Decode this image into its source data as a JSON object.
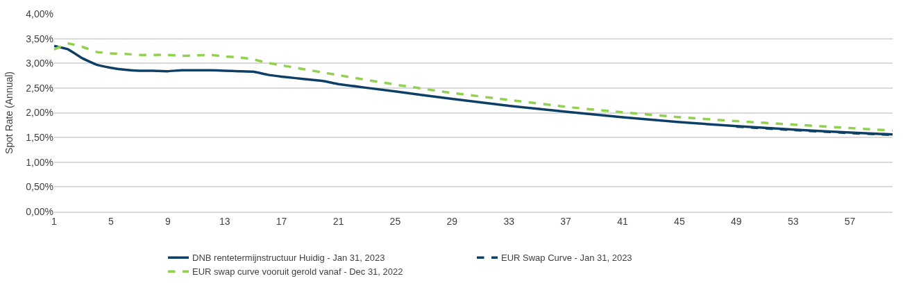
{
  "chart_data": {
    "type": "line",
    "ylabel": "Spot Rate (Annual)",
    "x": [
      1,
      2,
      3,
      4,
      5,
      6,
      7,
      8,
      9,
      10,
      11,
      12,
      13,
      14,
      15,
      16,
      17,
      18,
      19,
      20,
      21,
      25,
      29,
      33,
      37,
      41,
      45,
      49,
      53,
      57,
      60
    ],
    "series": [
      {
        "name": "DNB rentetermijnstructuur Huidig - Jan 31, 2023",
        "color": "#0e3f66",
        "line_style": "solid",
        "values": [
          3.35,
          3.28,
          3.1,
          2.97,
          2.91,
          2.87,
          2.85,
          2.85,
          2.84,
          2.86,
          2.86,
          2.86,
          2.85,
          2.84,
          2.83,
          2.77,
          2.73,
          2.7,
          2.67,
          2.64,
          2.58,
          2.43,
          2.28,
          2.14,
          2.02,
          1.91,
          1.81,
          1.73,
          1.66,
          1.6,
          1.56
        ]
      },
      {
        "name": "EUR Swap Curve - Jan 31, 2023",
        "color": "#0e3f66",
        "line_style": "dashed",
        "values": [
          null,
          null,
          null,
          null,
          null,
          null,
          null,
          null,
          null,
          null,
          null,
          null,
          null,
          null,
          null,
          null,
          null,
          null,
          null,
          null,
          null,
          null,
          null,
          null,
          null,
          null,
          null,
          1.72,
          1.65,
          1.59,
          1.55
        ]
      },
      {
        "name": "EUR swap curve vooruit gerold vanaf - Dec 31, 2022",
        "color": "#92d050",
        "line_style": "dashed",
        "values": [
          3.28,
          3.4,
          3.33,
          3.23,
          3.2,
          3.19,
          3.17,
          3.17,
          3.17,
          3.15,
          3.16,
          3.17,
          3.14,
          3.12,
          3.08,
          3.01,
          2.96,
          2.91,
          2.86,
          2.81,
          2.76,
          2.57,
          2.4,
          2.26,
          2.12,
          2.01,
          1.91,
          1.83,
          1.76,
          1.69,
          1.64
        ]
      }
    ],
    "xlim": [
      1,
      60
    ],
    "xticks": [
      1,
      5,
      9,
      13,
      17,
      21,
      25,
      29,
      33,
      37,
      41,
      45,
      49,
      53,
      57
    ],
    "ylim": [
      0,
      4
    ],
    "yticks": [
      {
        "value": 0,
        "label": "0,00%"
      },
      {
        "value": 0.5,
        "label": "0,50%"
      },
      {
        "value": 1,
        "label": "1,00%"
      },
      {
        "value": 1.5,
        "label": "1,50%"
      },
      {
        "value": 2,
        "label": "2,00%"
      },
      {
        "value": 2.5,
        "label": "2,50%"
      },
      {
        "value": 3,
        "label": "3,00%"
      },
      {
        "value": 3.5,
        "label": "3,50%"
      },
      {
        "value": 4,
        "label": "4,00%"
      }
    ],
    "grid": "y",
    "legend": "bottom"
  }
}
